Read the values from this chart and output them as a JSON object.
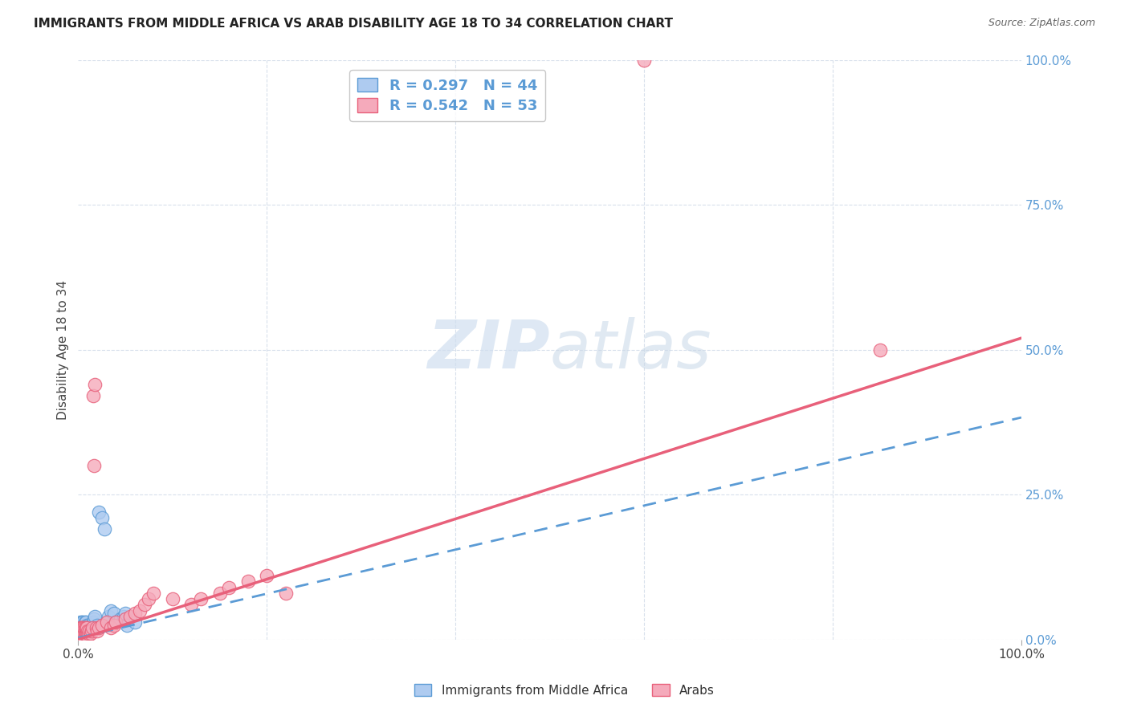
{
  "title": "IMMIGRANTS FROM MIDDLE AFRICA VS ARAB DISABILITY AGE 18 TO 34 CORRELATION CHART",
  "source": "Source: ZipAtlas.com",
  "ylabel": "Disability Age 18 to 34",
  "xlim": [
    0,
    1.0
  ],
  "ylim": [
    0,
    1.0
  ],
  "blue_R": "0.297",
  "blue_N": "44",
  "pink_R": "0.542",
  "pink_N": "53",
  "blue_color": "#aecbf0",
  "pink_color": "#f5aabb",
  "blue_line_color": "#5b9bd5",
  "pink_line_color": "#e8607a",
  "right_label_color": "#5b9bd5",
  "watermark_color": "#d0dff0",
  "grid_color": "#d8e0ec",
  "background_color": "#ffffff",
  "legend_facecolor": "#ffffff",
  "legend_edgecolor": "#bbbbbb",
  "blue_line_intercept": 0.003,
  "blue_line_slope": 0.38,
  "pink_line_intercept": 0.0,
  "pink_line_slope": 0.52,
  "blue_scatter_x": [
    0.001,
    0.002,
    0.002,
    0.003,
    0.003,
    0.004,
    0.004,
    0.005,
    0.005,
    0.005,
    0.006,
    0.006,
    0.007,
    0.007,
    0.008,
    0.008,
    0.009,
    0.009,
    0.01,
    0.01,
    0.011,
    0.011,
    0.012,
    0.013,
    0.014,
    0.015,
    0.016,
    0.017,
    0.018,
    0.019,
    0.02,
    0.022,
    0.025,
    0.028,
    0.03,
    0.032,
    0.035,
    0.038,
    0.04,
    0.045,
    0.048,
    0.05,
    0.052,
    0.06
  ],
  "blue_scatter_y": [
    0.01,
    0.02,
    0.03,
    0.015,
    0.025,
    0.02,
    0.03,
    0.01,
    0.02,
    0.03,
    0.015,
    0.025,
    0.02,
    0.03,
    0.02,
    0.03,
    0.015,
    0.025,
    0.01,
    0.02,
    0.015,
    0.025,
    0.02,
    0.015,
    0.02,
    0.025,
    0.03,
    0.035,
    0.04,
    0.02,
    0.025,
    0.22,
    0.21,
    0.19,
    0.03,
    0.04,
    0.05,
    0.045,
    0.03,
    0.035,
    0.04,
    0.045,
    0.025,
    0.03
  ],
  "pink_scatter_x": [
    0.001,
    0.001,
    0.002,
    0.002,
    0.003,
    0.003,
    0.004,
    0.004,
    0.005,
    0.005,
    0.006,
    0.006,
    0.007,
    0.007,
    0.008,
    0.008,
    0.009,
    0.009,
    0.01,
    0.01,
    0.011,
    0.012,
    0.013,
    0.014,
    0.015,
    0.016,
    0.017,
    0.018,
    0.019,
    0.02,
    0.022,
    0.025,
    0.03,
    0.035,
    0.038,
    0.04,
    0.05,
    0.055,
    0.06,
    0.065,
    0.07,
    0.075,
    0.08,
    0.1,
    0.12,
    0.13,
    0.15,
    0.16,
    0.18,
    0.2,
    0.22,
    0.6,
    0.85
  ],
  "pink_scatter_y": [
    0.005,
    0.015,
    0.01,
    0.02,
    0.01,
    0.02,
    0.01,
    0.02,
    0.005,
    0.015,
    0.01,
    0.02,
    0.01,
    0.02,
    0.01,
    0.02,
    0.01,
    0.02,
    0.005,
    0.015,
    0.01,
    0.015,
    0.01,
    0.015,
    0.02,
    0.42,
    0.3,
    0.44,
    0.02,
    0.015,
    0.02,
    0.025,
    0.03,
    0.02,
    0.025,
    0.03,
    0.035,
    0.04,
    0.045,
    0.05,
    0.06,
    0.07,
    0.08,
    0.07,
    0.06,
    0.07,
    0.08,
    0.09,
    0.1,
    0.11,
    0.08,
    1.0,
    0.5
  ]
}
